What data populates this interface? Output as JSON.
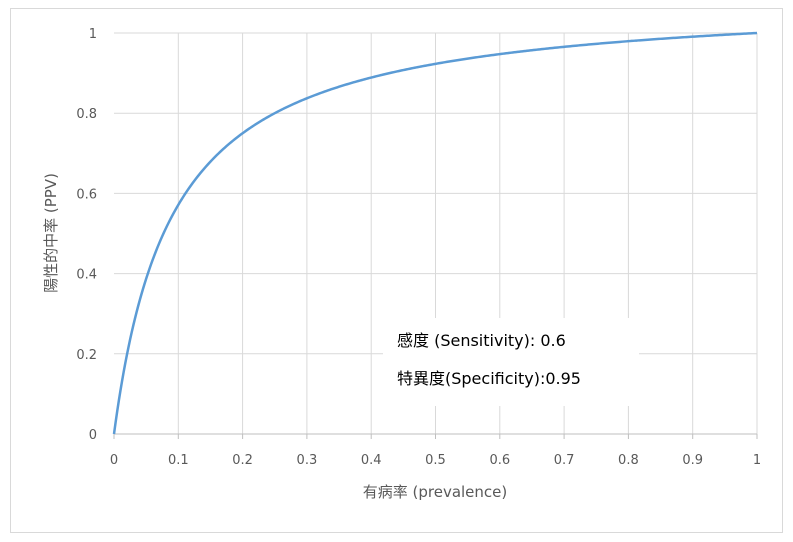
{
  "chart_data": {
    "type": "line",
    "xlabel": "有病率 (prevalence)",
    "ylabel": "陽性的中率 (PPV)",
    "xlim": [
      0,
      1
    ],
    "ylim": [
      0,
      1
    ],
    "x_ticks": [
      "0",
      "0.1",
      "0.2",
      "0.3",
      "0.4",
      "0.5",
      "0.6",
      "0.7",
      "0.8",
      "0.9",
      "1"
    ],
    "y_ticks": [
      "0",
      "0.2",
      "0.4",
      "0.6",
      "0.8",
      "1"
    ],
    "grid": true,
    "sensitivity": 0.6,
    "specificity": 0.95,
    "annotation": {
      "line1": "感度 (Sensitivity): 0.6",
      "line2": "特異度(Specificity):0.95"
    },
    "series": [
      {
        "color": "#5b9bd5",
        "x": [
          0,
          0.02,
          0.04,
          0.06,
          0.08,
          0.1,
          0.12,
          0.14,
          0.16,
          0.18,
          0.2,
          0.25,
          0.3,
          0.35,
          0.4,
          0.45,
          0.5,
          0.55,
          0.6,
          0.65,
          0.7,
          0.75,
          0.8,
          0.85,
          0.9,
          0.95,
          1
        ],
        "y": [
          0,
          0.197,
          0.333,
          0.434,
          0.511,
          0.571,
          0.621,
          0.661,
          0.696,
          0.725,
          0.75,
          0.8,
          0.837,
          0.866,
          0.889,
          0.907,
          0.923,
          0.936,
          0.947,
          0.957,
          0.966,
          0.973,
          0.98,
          0.986,
          0.991,
          0.996,
          1
        ]
      }
    ]
  }
}
